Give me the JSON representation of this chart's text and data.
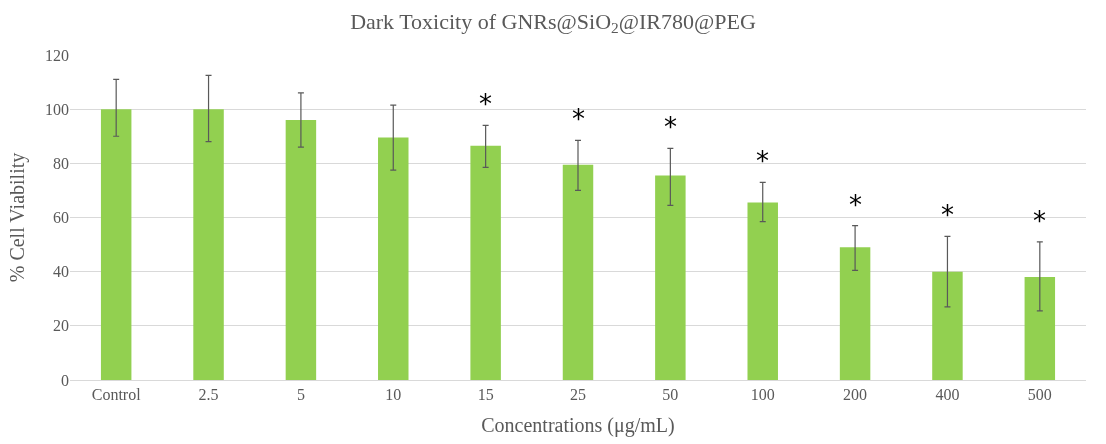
{
  "chart_data": {
    "type": "bar",
    "title": "Dark Toxicity of GNRs@SiO$_{2}$@IR780@PEG",
    "xlabel": "Concentrations (μg/mL)",
    "ylabel": "% Cell Viability",
    "categories": [
      "Control",
      "2.5",
      "5",
      "10",
      "15",
      "25",
      "50",
      "100",
      "200",
      "400",
      "500"
    ],
    "values": [
      100,
      100,
      96,
      89.5,
      86.5,
      79.5,
      75.5,
      65.5,
      49,
      40,
      38
    ],
    "errors": [
      [
        90,
        111
      ],
      [
        88,
        112.5
      ],
      [
        86,
        106
      ],
      [
        77.5,
        101.5
      ],
      [
        78.5,
        94
      ],
      [
        70,
        88.5
      ],
      [
        64.5,
        85.5
      ],
      [
        58.5,
        73
      ],
      [
        40.5,
        57
      ],
      [
        27,
        53
      ],
      [
        25.5,
        51
      ]
    ],
    "color": "#92d050",
    "ylim": [
      0,
      120
    ],
    "yticks": [
      0,
      20,
      40,
      60,
      80,
      100,
      120
    ],
    "grid": "y",
    "value_labels": [
      null,
      null,
      null,
      null,
      "*",
      "*",
      "*",
      "*",
      "*",
      "*",
      "*"
    ]
  }
}
